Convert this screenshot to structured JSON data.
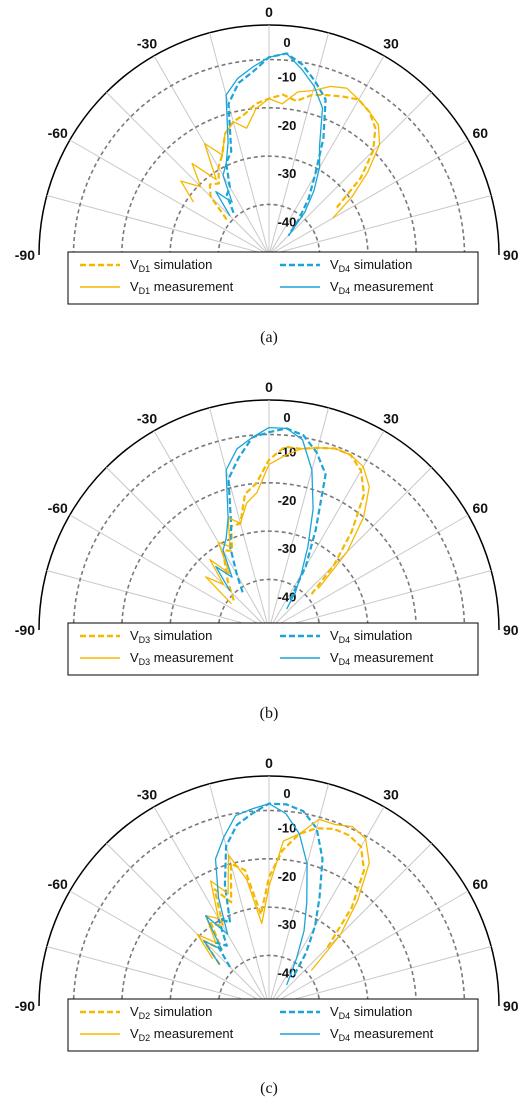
{
  "colors": {
    "vd": "#f5b800",
    "v4": "#1ba4d8",
    "axis": "#000000",
    "grid": "#c8c8c8",
    "ring": "#7a7a7a"
  },
  "panels": [
    {
      "caption": "(a)",
      "legend": [
        {
          "name": "V",
          "sub": "D1",
          "suffix": " simulation",
          "style": "dash",
          "color_key": "vd"
        },
        {
          "name": "V",
          "sub": "D4",
          "suffix": " simulation",
          "style": "dash",
          "color_key": "v4"
        },
        {
          "name": "V",
          "sub": "D1",
          "suffix": " measurement",
          "style": "solid",
          "color_key": "vd"
        },
        {
          "name": "V",
          "sub": "D4",
          "suffix": " measurement",
          "style": "solid",
          "color_key": "v4"
        }
      ]
    },
    {
      "caption": "(b)",
      "legend": [
        {
          "name": "V",
          "sub": "D3",
          "suffix": " simulation",
          "style": "dash",
          "color_key": "vd"
        },
        {
          "name": "V",
          "sub": "D4",
          "suffix": " simulation",
          "style": "dash",
          "color_key": "v4"
        },
        {
          "name": "V",
          "sub": "D3",
          "suffix": " measurement",
          "style": "solid",
          "color_key": "vd"
        },
        {
          "name": "V",
          "sub": "D4",
          "suffix": " measurement",
          "style": "solid",
          "color_key": "v4"
        }
      ]
    },
    {
      "caption": "(c)",
      "legend": [
        {
          "name": "V",
          "sub": "D2",
          "suffix": " simulation",
          "style": "dash",
          "color_key": "vd"
        },
        {
          "name": "V",
          "sub": "D4",
          "suffix": " simulation",
          "style": "dash",
          "color_key": "v4"
        },
        {
          "name": "V",
          "sub": "D2",
          "suffix": " measurement",
          "style": "solid",
          "color_key": "vd"
        },
        {
          "name": "V",
          "sub": "D4",
          "suffix": " measurement",
          "style": "solid",
          "color_key": "v4"
        }
      ]
    }
  ],
  "chart_data": [
    {
      "type": "polar-line",
      "angle_ticks": [
        "-90",
        "-60",
        "-30",
        "0",
        "30",
        "60",
        "90"
      ],
      "angle_range": [
        -90,
        90
      ],
      "radial_ticks": [
        "0",
        "-10",
        "-20",
        "-30",
        "-40"
      ],
      "radial_range": [
        -50,
        0
      ],
      "grid": true,
      "legend_position": "bottom",
      "series": [
        {
          "name": "VD1 simulation",
          "color_key": "vd",
          "style": "dash",
          "theta": [
            -50,
            -45,
            -40,
            -35,
            -30,
            -25,
            -20,
            -15,
            -10,
            -5,
            0,
            5,
            10,
            15,
            20,
            25,
            30,
            35,
            40,
            45,
            50,
            55
          ],
          "r": [
            -38,
            -32,
            -30,
            -31,
            -28,
            -26,
            -22,
            -20,
            -19,
            -17,
            -16,
            -15,
            -16,
            -14,
            -13,
            -12,
            -11,
            -12,
            -14,
            -18,
            -24,
            -32
          ]
        },
        {
          "name": "VD4 simulation",
          "color_key": "v4",
          "style": "dash",
          "theta": [
            -40,
            -35,
            -30,
            -25,
            -20,
            -15,
            -10,
            -5,
            0,
            5,
            10,
            15,
            20,
            25,
            30,
            35,
            40,
            45
          ],
          "r": [
            -38,
            -34,
            -33,
            -28,
            -26,
            -16,
            -12,
            -10,
            -7,
            -6,
            -8,
            -11,
            -14,
            -22,
            -30,
            -35,
            -40,
            -44
          ]
        },
        {
          "name": "VD1 measurement",
          "color_key": "vd",
          "style": "solid",
          "theta": [
            -55,
            -50,
            -45,
            -40,
            -35,
            -30,
            -25,
            -20,
            -15,
            -10,
            -5,
            0,
            5,
            10,
            15,
            20,
            25,
            30,
            35,
            40,
            45,
            50,
            55,
            60
          ],
          "r": [
            -30,
            -25,
            -29,
            -24,
            -30,
            -22,
            -26,
            -22,
            -20,
            -22,
            -18,
            -16,
            -17,
            -14,
            -13,
            -11,
            -10,
            -11,
            -12,
            -13,
            -16,
            -22,
            -28,
            -34
          ]
        },
        {
          "name": "VD4 measurement",
          "color_key": "v4",
          "style": "solid",
          "theta": [
            -45,
            -40,
            -35,
            -30,
            -25,
            -20,
            -15,
            -10,
            -5,
            0,
            5,
            10,
            15,
            20,
            25,
            30,
            35,
            40,
            45
          ],
          "r": [
            -38,
            -32,
            -36,
            -30,
            -28,
            -24,
            -14,
            -11,
            -9,
            -7,
            -6,
            -9,
            -12,
            -16,
            -24,
            -28,
            -33,
            -38,
            -44
          ]
        }
      ]
    },
    {
      "type": "polar-line",
      "angle_ticks": [
        "-90",
        "-60",
        "-30",
        "0",
        "30",
        "60",
        "90"
      ],
      "angle_range": [
        -90,
        90
      ],
      "radial_ticks": [
        "0",
        "-10",
        "-20",
        "-30",
        "-40"
      ],
      "radial_range": [
        -50,
        0
      ],
      "grid": true,
      "legend_position": "bottom",
      "series": [
        {
          "name": "VD3 simulation",
          "color_key": "vd",
          "style": "dash",
          "theta": [
            -50,
            -40,
            -30,
            -25,
            -20,
            -15,
            -10,
            -5,
            0,
            5,
            10,
            15,
            20,
            25,
            30,
            35,
            40,
            45,
            50
          ],
          "r": [
            -40,
            -36,
            -30,
            -31,
            -26,
            -26,
            -20,
            -18,
            -13,
            -10,
            -10,
            -9,
            -8,
            -8,
            -10,
            -14,
            -22,
            -30,
            -38
          ]
        },
        {
          "name": "VD4 simulation",
          "color_key": "v4",
          "style": "dash",
          "theta": [
            -35,
            -30,
            -25,
            -20,
            -15,
            -10,
            -5,
            0,
            5,
            10,
            15,
            20,
            25,
            30,
            35
          ],
          "r": [
            -40,
            -36,
            -30,
            -26,
            -16,
            -12,
            -8,
            -7,
            -6,
            -7,
            -10,
            -14,
            -26,
            -34,
            -42
          ]
        },
        {
          "name": "VD3 measurement",
          "color_key": "vd",
          "style": "solid",
          "theta": [
            -55,
            -50,
            -45,
            -40,
            -35,
            -30,
            -25,
            -20,
            -15,
            -10,
            -5,
            0,
            5,
            10,
            15,
            20,
            25,
            30,
            35,
            40,
            45,
            50
          ],
          "r": [
            -40,
            -32,
            -36,
            -30,
            -35,
            -28,
            -30,
            -24,
            -26,
            -22,
            -20,
            -14,
            -12,
            -10,
            -9,
            -8,
            -8,
            -9,
            -12,
            -18,
            -26,
            -36
          ]
        },
        {
          "name": "VD4 measurement",
          "color_key": "v4",
          "style": "solid",
          "theta": [
            -45,
            -40,
            -35,
            -30,
            -25,
            -20,
            -15,
            -10,
            -5,
            0,
            5,
            10,
            15,
            20,
            25,
            30,
            35,
            40
          ],
          "r": [
            -38,
            -32,
            -36,
            -30,
            -28,
            -24,
            -14,
            -10,
            -8,
            -6,
            -6,
            -8,
            -14,
            -22,
            -30,
            -36,
            -40,
            -44
          ]
        }
      ]
    },
    {
      "type": "polar-line",
      "angle_ticks": [
        "-90",
        "-60",
        "-30",
        "0",
        "30",
        "60",
        "90"
      ],
      "angle_range": [
        -90,
        90
      ],
      "radial_ticks": [
        "0",
        "-10",
        "-20",
        "-30",
        "-40"
      ],
      "radial_range": [
        -50,
        0
      ],
      "grid": true,
      "legend_position": "bottom",
      "series": [
        {
          "name": "VD2 simulation",
          "color_key": "vd",
          "style": "dash",
          "theta": [
            -50,
            -45,
            -40,
            -35,
            -30,
            -25,
            -20,
            -15,
            -10,
            -5,
            0,
            5,
            10,
            15,
            20,
            25,
            30,
            35,
            40,
            45
          ],
          "r": [
            -36,
            -30,
            -34,
            -28,
            -30,
            -22,
            -26,
            -18,
            -20,
            -30,
            -22,
            -16,
            -12,
            -10,
            -9,
            -9,
            -10,
            -14,
            -22,
            -32
          ]
        },
        {
          "name": "VD4 simulation",
          "color_key": "v4",
          "style": "dash",
          "theta": [
            -45,
            -40,
            -35,
            -30,
            -25,
            -20,
            -15,
            -10,
            -5,
            0,
            5,
            10,
            15,
            20,
            25,
            30,
            35,
            40
          ],
          "r": [
            -38,
            -32,
            -34,
            -28,
            -30,
            -22,
            -14,
            -10,
            -8,
            -6,
            -6,
            -7,
            -10,
            -16,
            -24,
            -30,
            -36,
            -42
          ]
        },
        {
          "name": "VD2 measurement",
          "color_key": "vd",
          "style": "solid",
          "theta": [
            -50,
            -45,
            -40,
            -35,
            -30,
            -25,
            -20,
            -15,
            -10,
            -5,
            0,
            5,
            10,
            15,
            20,
            25,
            30,
            35,
            40,
            45,
            50
          ],
          "r": [
            -34,
            -28,
            -32,
            -26,
            -28,
            -20,
            -24,
            -16,
            -22,
            -32,
            -24,
            -14,
            -12,
            -8,
            -8,
            -7,
            -8,
            -12,
            -20,
            -28,
            -38
          ]
        },
        {
          "name": "VD4 measurement",
          "color_key": "v4",
          "style": "solid",
          "theta": [
            -50,
            -45,
            -40,
            -35,
            -30,
            -25,
            -20,
            -15,
            -10,
            -5,
            0,
            5,
            10,
            15,
            20,
            25,
            30,
            35,
            40
          ],
          "r": [
            -36,
            -30,
            -34,
            -26,
            -32,
            -24,
            -16,
            -12,
            -8,
            -7,
            -6,
            -8,
            -12,
            -18,
            -26,
            -32,
            -38,
            -42,
            -44
          ]
        }
      ]
    }
  ]
}
